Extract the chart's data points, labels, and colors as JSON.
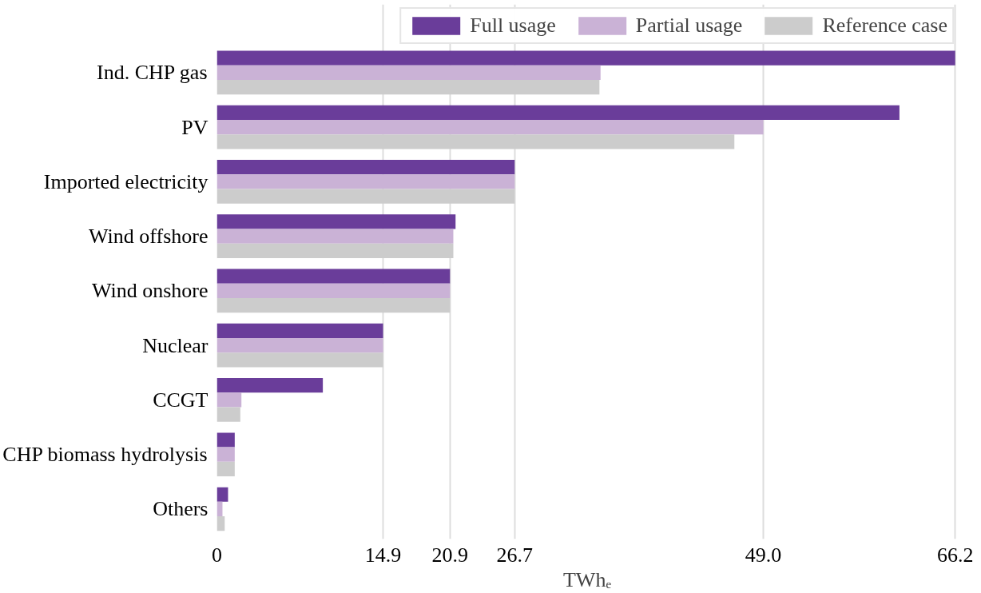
{
  "chart_data": {
    "type": "bar",
    "orientation": "horizontal",
    "xlabel": "TWhₑ",
    "categories": [
      "Ind. CHP gas",
      "PV",
      "Imported electricity",
      "Wind offshore",
      "Wind onshore",
      "Nuclear",
      "CCGT",
      "CHP biomass hydrolysis",
      "Others"
    ],
    "series": [
      {
        "name": "Full usage",
        "color": "#6a3d9a",
        "values": [
          66.2,
          61.2,
          26.7,
          21.4,
          20.9,
          14.9,
          9.5,
          1.6,
          1.0
        ]
      },
      {
        "name": "Partial usage",
        "color": "#cab2d6",
        "values": [
          34.4,
          49.0,
          26.7,
          21.2,
          20.9,
          14.9,
          2.2,
          1.6,
          0.5
        ]
      },
      {
        "name": "Reference case",
        "color": "#cccccc",
        "values": [
          34.3,
          46.4,
          26.7,
          21.2,
          20.9,
          14.9,
          2.1,
          1.6,
          0.7
        ]
      }
    ],
    "xlim": [
      0,
      66.4
    ],
    "xticks": [
      0,
      14.9,
      20.9,
      26.7,
      {
        "value": 49,
        "label": "49.0"
      },
      66.2
    ],
    "grid": "x",
    "legend": "top"
  }
}
